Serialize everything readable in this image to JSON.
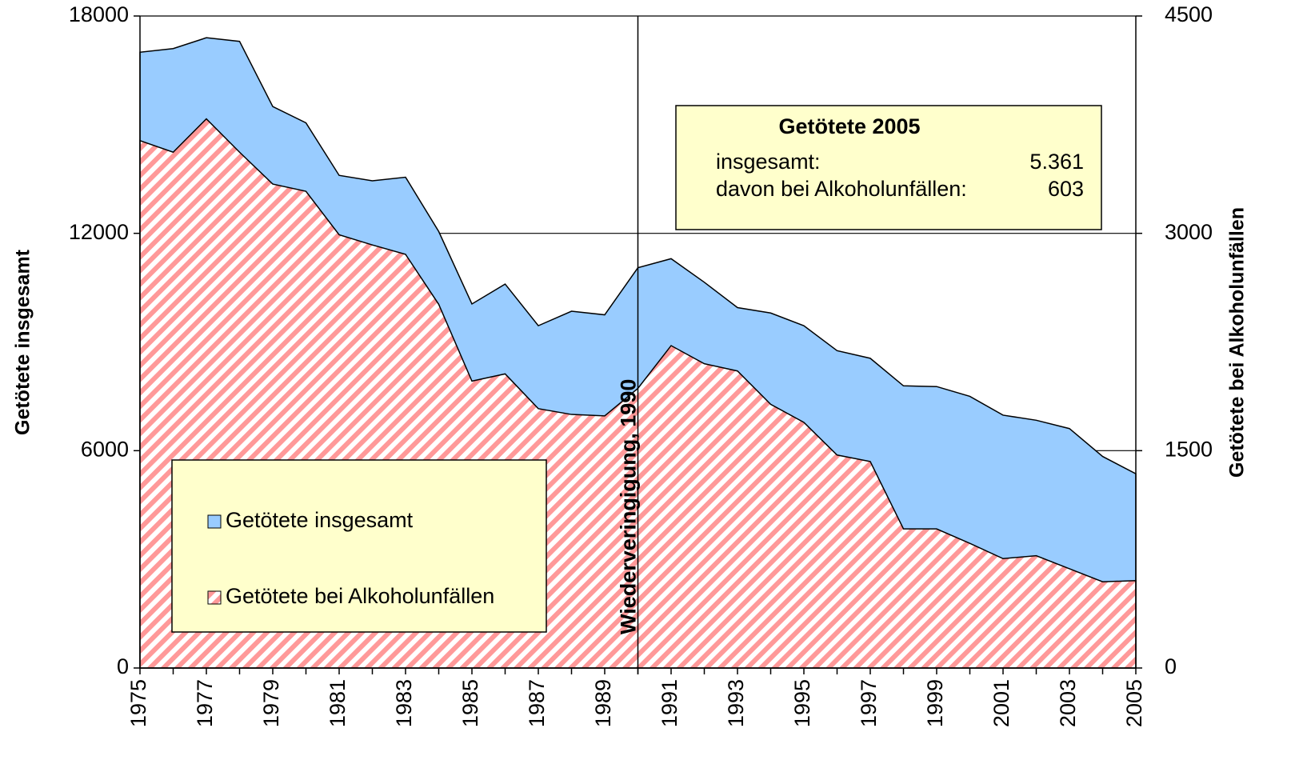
{
  "chart_data": {
    "type": "area",
    "ylabel": "Getötete insgesamt",
    "y2label": "Getötete bei Alkoholunfällen",
    "x": [
      1975,
      1976,
      1977,
      1978,
      1979,
      1980,
      1981,
      1982,
      1983,
      1984,
      1985,
      1986,
      1987,
      1988,
      1989,
      1990,
      1991,
      1992,
      1993,
      1994,
      1995,
      1996,
      1997,
      1998,
      1999,
      2000,
      2001,
      2002,
      2003,
      2004,
      2005
    ],
    "xlim": [
      1975,
      2005
    ],
    "xticks": [
      1975,
      1977,
      1979,
      1981,
      1983,
      1985,
      1987,
      1989,
      1991,
      1993,
      1995,
      1997,
      1999,
      2001,
      2003,
      2005
    ],
    "ylim": [
      0,
      18000
    ],
    "yticks": [
      0,
      6000,
      12000,
      18000
    ],
    "y2lim": [
      0,
      4500
    ],
    "y2ticks": [
      0,
      1500,
      3000,
      4500
    ],
    "grid": true,
    "legend": "lower left",
    "series": [
      {
        "name": "Getötete insgesamt",
        "color": "#99ccff",
        "axis": "y",
        "values": [
          17000,
          17100,
          17400,
          17300,
          15500,
          15050,
          13600,
          13450,
          13550,
          12050,
          10050,
          10600,
          9450,
          9850,
          9750,
          11050,
          11300,
          10650,
          9950,
          9800,
          9450,
          8760,
          8550,
          7790,
          7770,
          7500,
          6980,
          6840,
          6610,
          5840,
          5361
        ]
      },
      {
        "name": "Getötete bei Alkoholunfällen",
        "color": "#ff8080",
        "axis": "y2",
        "hatch": true,
        "values": [
          3640,
          3560,
          3790,
          3560,
          3340,
          3290,
          2990,
          2920,
          2855,
          2510,
          1980,
          2030,
          1790,
          1750,
          1740,
          1930,
          2225,
          2100,
          2050,
          1820,
          1695,
          1470,
          1425,
          960,
          960,
          860,
          755,
          775,
          685,
          595,
          603
        ]
      }
    ],
    "annotations": [
      {
        "x": 1990,
        "text": "Wiederveringigung, 1990"
      }
    ],
    "info_box": {
      "title": "Getötete 2005",
      "rows": [
        [
          "insgesamt:",
          "5.361"
        ],
        [
          "davon bei Alkoholunfällen:",
          "603"
        ]
      ]
    }
  }
}
